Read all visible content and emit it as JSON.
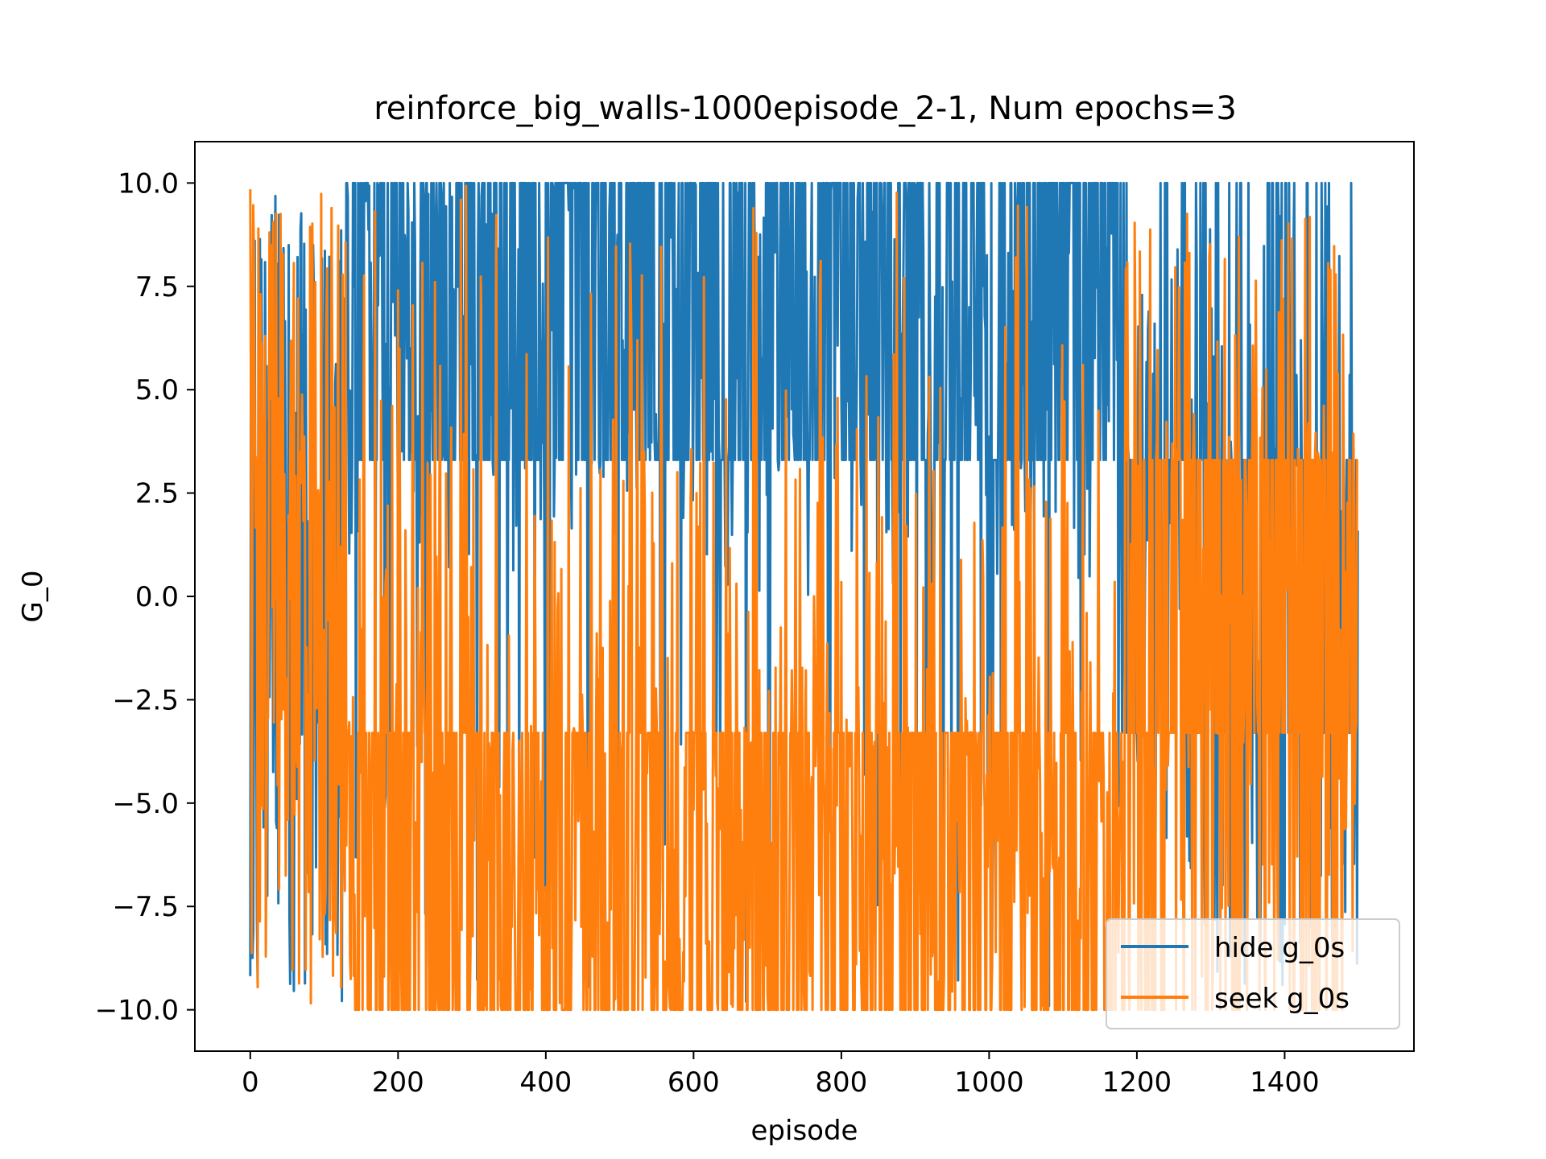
{
  "chart_data": {
    "type": "line",
    "title": "reinforce_big_walls-1000episode_2-1, Num epochs=3",
    "xlabel": "episode",
    "ylabel": "G_0",
    "xlim": [
      -75,
      1575
    ],
    "ylim": [
      -11,
      11
    ],
    "xticks": [
      0,
      200,
      400,
      600,
      800,
      1000,
      1200,
      1400
    ],
    "xtick_labels": [
      "0",
      "200",
      "400",
      "600",
      "800",
      "1000",
      "1200",
      "1400"
    ],
    "yticks": [
      10,
      7.5,
      5,
      2.5,
      0,
      -2.5,
      -5,
      -7.5,
      -10
    ],
    "ytick_labels": [
      "10.0",
      "7.5",
      "5.0",
      "2.5",
      "0.0",
      "−2.5",
      "−5.0",
      "−7.5",
      "−10.0"
    ],
    "grid": false,
    "legend_position": "lower-right",
    "n_points": 1500,
    "series": [
      {
        "name": "hide g_0s",
        "color": "#1f77b4",
        "values_note": "",
        "segments": [
          {
            "x": [
              0,
              130
            ],
            "pattern": "mixed",
            "mean": 0.5
          },
          {
            "x": [
              130,
              1180
            ],
            "pattern": "mostly-high",
            "mean": 6.0
          },
          {
            "x": [
              1180,
              1500
            ],
            "pattern": "mixed",
            "mean": 0.0
          }
        ]
      },
      {
        "name": "seek g_0s",
        "color": "#ff7f0e",
        "segments": [
          {
            "x": [
              0,
              130
            ],
            "pattern": "mixed",
            "mean": 0.5
          },
          {
            "x": [
              130,
              1180
            ],
            "pattern": "mostly-low",
            "mean": -5.0
          },
          {
            "x": [
              1180,
              1500
            ],
            "pattern": "mixed",
            "mean": 0.0
          }
        ]
      }
    ]
  }
}
